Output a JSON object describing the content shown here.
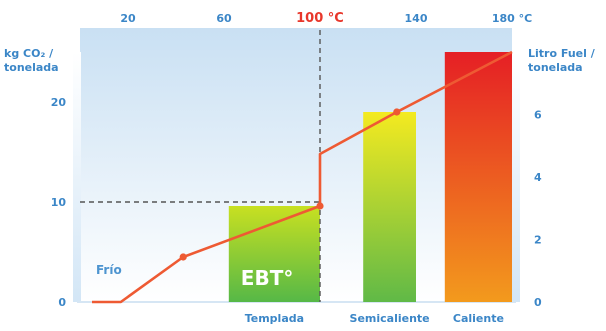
{
  "chart_data": {
    "type": "line",
    "x_ticks_top": [
      "20",
      "60",
      "100 °C",
      "140",
      "180 °C"
    ],
    "x_tick_values": [
      20,
      60,
      100,
      140,
      180
    ],
    "xlim": [
      0,
      180
    ],
    "y_left_label": [
      "kg CO₂ /",
      "tonelada"
    ],
    "y_left_ticks": [
      0,
      10,
      20
    ],
    "ylim_left": [
      0,
      25
    ],
    "y_right_label": [
      "Litro Fuel /",
      "tonelada"
    ],
    "y_right_ticks": [
      0,
      2,
      4,
      6
    ],
    "ylim_right": [
      0,
      8
    ],
    "highlight_label": "100 °C",
    "reference_lines": {
      "x": 100,
      "y": 10
    },
    "series": [
      {
        "values": [
          [
            5,
            0
          ],
          [
            17,
            0
          ],
          [
            43,
            4.5
          ],
          [
            100,
            9.6
          ],
          [
            100,
            14.8
          ],
          [
            132,
            19
          ],
          [
            180,
            25
          ]
        ],
        "markers": [
          [
            43,
            4.5
          ],
          [
            100,
            9.6
          ],
          [
            132,
            19
          ]
        ]
      }
    ],
    "bands": [
      {
        "label": "EBT°",
        "category": "Templada",
        "x0": 62,
        "x1": 100,
        "top": 9.6,
        "colors": [
          "#c8e021",
          "#56b847"
        ]
      },
      {
        "category": "Semicaliente",
        "x0": 118,
        "x1": 140,
        "top": 19,
        "colors": [
          "#f4ea20",
          "#60b947"
        ]
      },
      {
        "category": "Caliente",
        "x0": 152,
        "x1": 180,
        "top": 25,
        "colors": [
          "#e51f25",
          "#f39a1d"
        ]
      }
    ],
    "zone_label": "Frío"
  },
  "colors": {
    "axis_blue": "#5b9bd5",
    "tick_blue": "#3b86c7",
    "line_red": "#ee5a33",
    "highlight_red": "#e8372b",
    "bg_top": "#cfe4f5"
  }
}
